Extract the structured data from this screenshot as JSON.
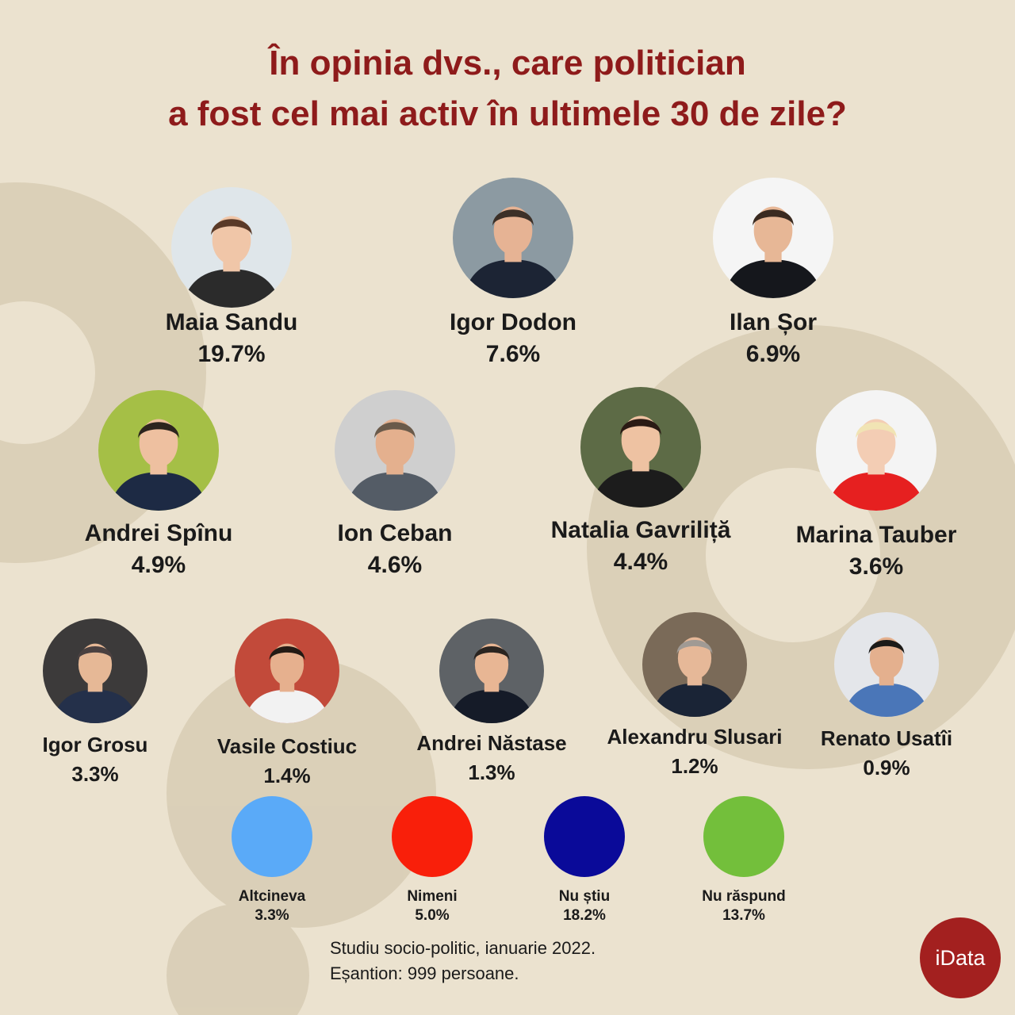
{
  "title_line1": "În opinia dvs., care politician",
  "title_line2": "a fost cel mai activ în ultimele 30 de zile?",
  "colors": {
    "title": "#8e1b1b",
    "background": "#ebe2cf",
    "logo": "#a3201f"
  },
  "chart_data": {
    "type": "pictogram",
    "title": "În opinia dvs., care politician a fost cel mai activ în ultimele 30 de zile?",
    "unit": "%",
    "politicians": [
      {
        "name": "Maia Sandu",
        "label": "19.7%",
        "value": 19.7
      },
      {
        "name": "Igor Dodon",
        "label": "7.6%",
        "value": 7.6
      },
      {
        "name": "Ilan Șor",
        "label": "6.9%",
        "value": 6.9
      },
      {
        "name": "Andrei Spînu",
        "label": "4.9%",
        "value": 4.9
      },
      {
        "name": "Ion Ceban",
        "label": "4.6%",
        "value": 4.6
      },
      {
        "name": "Natalia Gavriliță",
        "label": "4.4%",
        "value": 4.4
      },
      {
        "name": "Marina Tauber",
        "label": "3.6%",
        "value": 3.6
      },
      {
        "name": "Igor Grosu",
        "label": "3.3%",
        "value": 3.3
      },
      {
        "name": "Vasile Costiuc",
        "label": "1.4%",
        "value": 1.4
      },
      {
        "name": "Andrei Năstase",
        "label": "1.3%",
        "value": 1.3
      },
      {
        "name": "Alexandru Slusari",
        "label": "1.2%",
        "value": 1.2
      },
      {
        "name": "Renato Usatîi",
        "label": "0.9%",
        "value": 0.9
      }
    ],
    "other_answers": [
      {
        "name": "Altcineva",
        "label": "3.3%",
        "value": 3.3,
        "color": "#5aaaf8"
      },
      {
        "name": "Nimeni",
        "label": "5.0%",
        "value": 5.0,
        "color": "#f91f0a"
      },
      {
        "name": "Nu știu",
        "label": "18.2%",
        "value": 18.2,
        "color": "#0a0a99"
      },
      {
        "name": "Nu răspund",
        "label": "13.7%",
        "value": 13.7,
        "color": "#73bf3b"
      }
    ]
  },
  "footer": {
    "line1": "Studiu socio-politic, ianuarie 2022.",
    "line2": "Eșantion: 999 persoane."
  },
  "logo": "iData"
}
